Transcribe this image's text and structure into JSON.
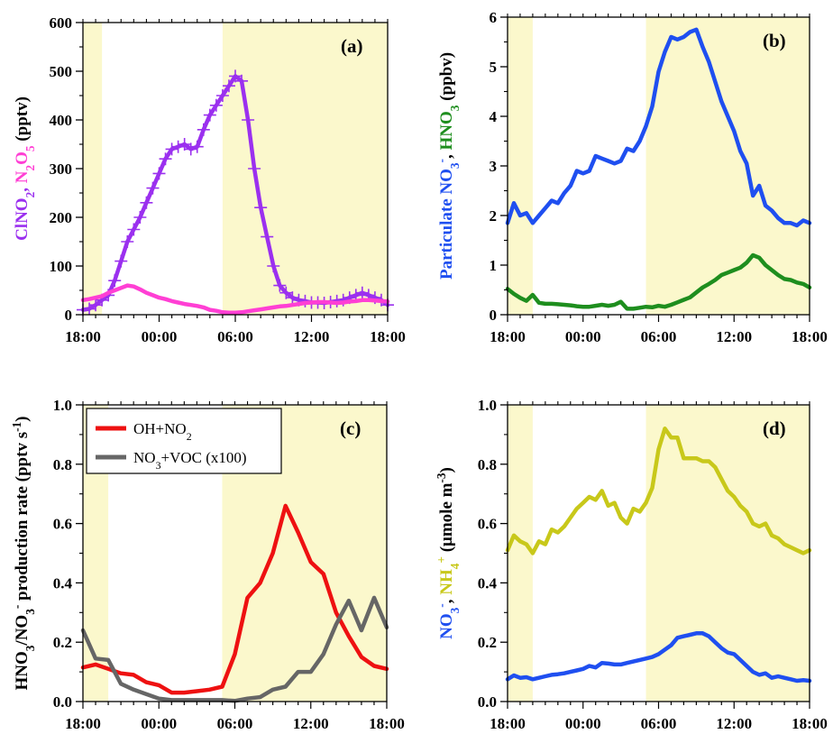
{
  "colors": {
    "clno2": "#9b30ef",
    "n2o5": "#ff3fd4",
    "nitrate": "#1f4ff0",
    "hno3": "#1e8e1e",
    "oh_no2": "#ee1111",
    "no3_voc": "#666666",
    "nh4": "#c8c81a",
    "night_shade": "#fbf8cc"
  },
  "x_ticks": [
    "18:00",
    "00:00",
    "06:00",
    "12:00",
    "18:00"
  ],
  "chart_data": [
    {
      "type": "line",
      "panel_label": "(a)",
      "ylabel_parts": [
        {
          "t": "ClNO",
          "c": "clno2"
        },
        {
          "t": "2",
          "c": "clno2",
          "sub": true
        },
        {
          "t": ", ",
          "c": "clno2"
        },
        {
          "t": "N",
          "c": "n2o5"
        },
        {
          "t": "2",
          "c": "n2o5",
          "sub": true
        },
        {
          "t": "O",
          "c": "n2o5"
        },
        {
          "t": "5",
          "c": "n2o5",
          "sub": true
        },
        {
          "t": " (pptv)",
          "c": "black"
        }
      ],
      "xlim": [
        0,
        24
      ],
      "ylim": [
        0,
        600
      ],
      "y_ticks": [
        "0",
        "100",
        "200",
        "300",
        "400",
        "500",
        "600"
      ],
      "shade": [
        [
          0,
          1.5
        ],
        [
          11,
          24
        ]
      ],
      "series": [
        {
          "key": "ClNO2",
          "color": "clno2",
          "marker": "plus",
          "x": [
            0,
            0.5,
            1,
            1.5,
            2,
            2.5,
            3,
            3.5,
            4,
            4.5,
            5,
            5.5,
            6,
            6.5,
            7,
            7.5,
            8,
            8.5,
            9,
            9.5,
            10,
            10.5,
            11,
            11.5,
            12,
            12.5,
            13,
            13.5,
            14,
            14.5,
            15,
            15.5,
            16,
            16.5,
            17,
            17.5,
            18,
            18.5,
            19,
            19.5,
            20,
            20.5,
            21,
            21.5,
            22,
            22.5,
            23,
            23.5,
            24
          ],
          "y": [
            10,
            12,
            20,
            30,
            40,
            70,
            110,
            150,
            175,
            200,
            230,
            260,
            290,
            320,
            340,
            345,
            350,
            340,
            345,
            380,
            410,
            430,
            450,
            470,
            490,
            480,
            400,
            300,
            220,
            160,
            100,
            60,
            45,
            35,
            30,
            28,
            25,
            25,
            24,
            26,
            28,
            30,
            35,
            40,
            45,
            40,
            35,
            30,
            20
          ]
        },
        {
          "key": "N2O5",
          "color": "n2o5",
          "marker": "line",
          "x": [
            0,
            0.5,
            1,
            1.5,
            2,
            2.5,
            3,
            3.5,
            4,
            4.5,
            5,
            5.5,
            6,
            6.5,
            7,
            7.5,
            8,
            8.5,
            9,
            9.5,
            10,
            10.5,
            11,
            11.5,
            12,
            12.5,
            13,
            13.5,
            14,
            14.5,
            15,
            15.5,
            16,
            16.5,
            17,
            17.5,
            18,
            18.5,
            19,
            19.5,
            20,
            20.5,
            21,
            21.5,
            22,
            22.5,
            23,
            23.5,
            24
          ],
          "y": [
            30,
            32,
            35,
            38,
            45,
            50,
            55,
            60,
            58,
            52,
            45,
            40,
            35,
            32,
            28,
            25,
            22,
            20,
            18,
            15,
            10,
            8,
            5,
            4,
            4,
            5,
            7,
            9,
            11,
            13,
            15,
            17,
            18,
            20,
            22,
            24,
            25,
            26,
            26,
            25,
            24,
            25,
            27,
            28,
            30,
            30,
            29,
            28,
            27
          ]
        }
      ]
    },
    {
      "type": "line",
      "panel_label": "(b)",
      "ylabel_parts": [
        {
          "t": "Particulate NO",
          "c": "nitrate"
        },
        {
          "t": "3",
          "c": "nitrate",
          "sub": true
        },
        {
          "t": "-",
          "c": "nitrate",
          "sup": true
        },
        {
          "t": ", ",
          "c": "black"
        },
        {
          "t": "HNO",
          "c": "hno3"
        },
        {
          "t": "3",
          "c": "hno3",
          "sub": true
        },
        {
          "t": " (ppbv)",
          "c": "black"
        }
      ],
      "xlim": [
        0,
        24
      ],
      "ylim": [
        0,
        6
      ],
      "y_ticks": [
        "0",
        "1",
        "2",
        "3",
        "4",
        "5",
        "6"
      ],
      "shade": [
        [
          0,
          2
        ],
        [
          11,
          24
        ]
      ],
      "series": [
        {
          "key": "Particulate NO3-",
          "color": "nitrate",
          "marker": "line",
          "x": [
            0,
            0.5,
            1,
            1.5,
            2,
            2.5,
            3,
            3.5,
            4,
            4.5,
            5,
            5.5,
            6,
            6.5,
            7,
            7.5,
            8,
            8.5,
            9,
            9.5,
            10,
            10.5,
            11,
            11.5,
            12,
            12.5,
            13,
            13.5,
            14,
            14.5,
            15,
            15.5,
            16,
            16.5,
            17,
            17.5,
            18,
            18.5,
            19,
            19.5,
            20,
            20.5,
            21,
            21.5,
            22,
            22.5,
            23,
            23.5,
            24
          ],
          "y": [
            1.85,
            2.25,
            2.0,
            2.05,
            1.85,
            2.0,
            2.15,
            2.3,
            2.25,
            2.45,
            2.6,
            2.9,
            2.85,
            2.9,
            3.2,
            3.15,
            3.1,
            3.05,
            3.1,
            3.35,
            3.3,
            3.5,
            3.8,
            4.2,
            4.9,
            5.3,
            5.6,
            5.55,
            5.6,
            5.7,
            5.75,
            5.4,
            5.1,
            4.7,
            4.3,
            4.0,
            3.7,
            3.3,
            3.05,
            2.4,
            2.6,
            2.2,
            2.1,
            1.95,
            1.85,
            1.85,
            1.8,
            1.9,
            1.85
          ]
        },
        {
          "key": "HNO3",
          "color": "hno3",
          "marker": "line",
          "x": [
            0,
            0.5,
            1,
            1.5,
            2,
            2.5,
            3,
            3.5,
            4,
            4.5,
            5,
            5.5,
            6,
            6.5,
            7,
            7.5,
            8,
            8.5,
            9,
            9.5,
            10,
            10.5,
            11,
            11.5,
            12,
            12.5,
            13,
            13.5,
            14,
            14.5,
            15,
            15.5,
            16,
            16.5,
            17,
            17.5,
            18,
            18.5,
            19,
            19.5,
            20,
            20.5,
            21,
            21.5,
            22,
            22.5,
            23,
            23.5,
            24
          ],
          "y": [
            0.52,
            0.42,
            0.34,
            0.28,
            0.4,
            0.24,
            0.22,
            0.22,
            0.21,
            0.2,
            0.19,
            0.17,
            0.16,
            0.16,
            0.18,
            0.2,
            0.18,
            0.2,
            0.26,
            0.12,
            0.12,
            0.14,
            0.16,
            0.15,
            0.18,
            0.16,
            0.2,
            0.25,
            0.3,
            0.35,
            0.45,
            0.55,
            0.62,
            0.7,
            0.8,
            0.85,
            0.9,
            0.95,
            1.05,
            1.2,
            1.15,
            1.0,
            0.9,
            0.8,
            0.72,
            0.7,
            0.65,
            0.62,
            0.55
          ]
        }
      ]
    },
    {
      "type": "line",
      "panel_label": "(c)",
      "ylabel_parts": [
        {
          "t": "HNO",
          "c": "black"
        },
        {
          "t": "3",
          "c": "black",
          "sub": true
        },
        {
          "t": "/NO",
          "c": "black"
        },
        {
          "t": "3",
          "c": "black",
          "sub": true
        },
        {
          "t": "-",
          "c": "black",
          "sup": true
        },
        {
          "t": " production rate (pptv s",
          "c": "black"
        },
        {
          "t": "-1",
          "c": "black",
          "sup": true
        },
        {
          "t": ")",
          "c": "black"
        }
      ],
      "xlim": [
        0,
        24
      ],
      "ylim": [
        0,
        1.0
      ],
      "y_ticks": [
        "0.0",
        "0.2",
        "0.4",
        "0.6",
        "0.8",
        "1.0"
      ],
      "shade": [
        [
          0,
          2
        ],
        [
          11,
          24
        ]
      ],
      "legend": [
        {
          "color": "oh_no2",
          "parts": [
            {
              "t": "OH+NO"
            },
            {
              "t": "2",
              "sub": true
            }
          ]
        },
        {
          "color": "no3_voc",
          "parts": [
            {
              "t": "NO"
            },
            {
              "t": "3",
              "sub": true
            },
            {
              "t": "+VOC (x100)"
            }
          ]
        }
      ],
      "series": [
        {
          "key": "OH+NO2",
          "color": "oh_no2",
          "marker": "line",
          "x": [
            0,
            1,
            2,
            3,
            4,
            5,
            6,
            7,
            8,
            9,
            10,
            11,
            12,
            13,
            14,
            15,
            16,
            17,
            18,
            19,
            20,
            21,
            22,
            23,
            24
          ],
          "y": [
            0.115,
            0.125,
            0.11,
            0.095,
            0.09,
            0.065,
            0.055,
            0.03,
            0.03,
            0.035,
            0.04,
            0.05,
            0.16,
            0.35,
            0.4,
            0.5,
            0.66,
            0.57,
            0.47,
            0.43,
            0.3,
            0.22,
            0.15,
            0.12,
            0.11
          ]
        },
        {
          "key": "NO3+VOC (x100)",
          "color": "no3_voc",
          "marker": "line",
          "x": [
            0,
            1,
            2,
            3,
            4,
            5,
            6,
            7,
            8,
            9,
            10,
            11,
            12,
            13,
            14,
            15,
            16,
            17,
            18,
            19,
            20,
            21,
            22,
            23,
            24
          ],
          "y": [
            0.24,
            0.145,
            0.14,
            0.06,
            0.04,
            0.025,
            0.01,
            0.005,
            0.005,
            0.005,
            0.005,
            0.005,
            0.002,
            0.01,
            0.015,
            0.04,
            0.05,
            0.1,
            0.1,
            0.16,
            0.26,
            0.34,
            0.24,
            0.35,
            0.25
          ]
        }
      ]
    },
    {
      "type": "line",
      "panel_label": "(d)",
      "ylabel_parts": [
        {
          "t": "NO",
          "c": "nitrate"
        },
        {
          "t": "3",
          "c": "nitrate",
          "sub": true
        },
        {
          "t": "-",
          "c": "nitrate",
          "sup": true
        },
        {
          "t": ", ",
          "c": "black"
        },
        {
          "t": "NH",
          "c": "nh4"
        },
        {
          "t": "4",
          "c": "nh4",
          "sub": true
        },
        {
          "t": "+",
          "c": "nh4",
          "sup": true
        },
        {
          "t": " (μmole m",
          "c": "black"
        },
        {
          "t": "-3",
          "c": "black",
          "sup": true
        },
        {
          "t": ")",
          "c": "black"
        }
      ],
      "xlim": [
        0,
        24
      ],
      "ylim": [
        0,
        1.0
      ],
      "y_ticks": [
        "0.0",
        "0.2",
        "0.4",
        "0.6",
        "0.8",
        "1.0"
      ],
      "shade": [
        [
          0,
          2
        ],
        [
          11,
          24
        ]
      ],
      "series": [
        {
          "key": "NH4+",
          "color": "nh4",
          "marker": "line",
          "x": [
            0,
            0.5,
            1,
            1.5,
            2,
            2.5,
            3,
            3.5,
            4,
            4.5,
            5,
            5.5,
            6,
            6.5,
            7,
            7.5,
            8,
            8.5,
            9,
            9.5,
            10,
            10.5,
            11,
            11.5,
            12,
            12.5,
            13,
            13.5,
            14,
            14.5,
            15,
            15.5,
            16,
            16.5,
            17,
            17.5,
            18,
            18.5,
            19,
            19.5,
            20,
            20.5,
            21,
            21.5,
            22,
            22.5,
            23,
            23.5,
            24
          ],
          "y": [
            0.51,
            0.56,
            0.54,
            0.53,
            0.5,
            0.54,
            0.53,
            0.58,
            0.57,
            0.59,
            0.62,
            0.65,
            0.67,
            0.69,
            0.68,
            0.71,
            0.66,
            0.67,
            0.62,
            0.6,
            0.65,
            0.64,
            0.67,
            0.72,
            0.85,
            0.92,
            0.89,
            0.89,
            0.82,
            0.82,
            0.82,
            0.81,
            0.81,
            0.79,
            0.75,
            0.71,
            0.69,
            0.66,
            0.64,
            0.6,
            0.59,
            0.6,
            0.56,
            0.55,
            0.53,
            0.52,
            0.51,
            0.5,
            0.51
          ]
        },
        {
          "key": "NO3-",
          "color": "nitrate",
          "marker": "line",
          "x": [
            0,
            0.5,
            1,
            1.5,
            2,
            2.5,
            3,
            3.5,
            4,
            4.5,
            5,
            5.5,
            6,
            6.5,
            7,
            7.5,
            8,
            8.5,
            9,
            9.5,
            10,
            10.5,
            11,
            11.5,
            12,
            12.5,
            13,
            13.5,
            14,
            14.5,
            15,
            15.5,
            16,
            16.5,
            17,
            17.5,
            18,
            18.5,
            19,
            19.5,
            20,
            20.5,
            21,
            21.5,
            22,
            22.5,
            23,
            23.5,
            24
          ],
          "y": [
            0.075,
            0.088,
            0.08,
            0.082,
            0.075,
            0.08,
            0.085,
            0.09,
            0.092,
            0.095,
            0.1,
            0.105,
            0.11,
            0.12,
            0.115,
            0.13,
            0.128,
            0.125,
            0.125,
            0.13,
            0.135,
            0.14,
            0.145,
            0.15,
            0.16,
            0.175,
            0.19,
            0.215,
            0.22,
            0.225,
            0.23,
            0.23,
            0.22,
            0.2,
            0.18,
            0.165,
            0.16,
            0.14,
            0.12,
            0.1,
            0.09,
            0.095,
            0.08,
            0.085,
            0.08,
            0.075,
            0.07,
            0.072,
            0.07
          ]
        }
      ]
    }
  ]
}
